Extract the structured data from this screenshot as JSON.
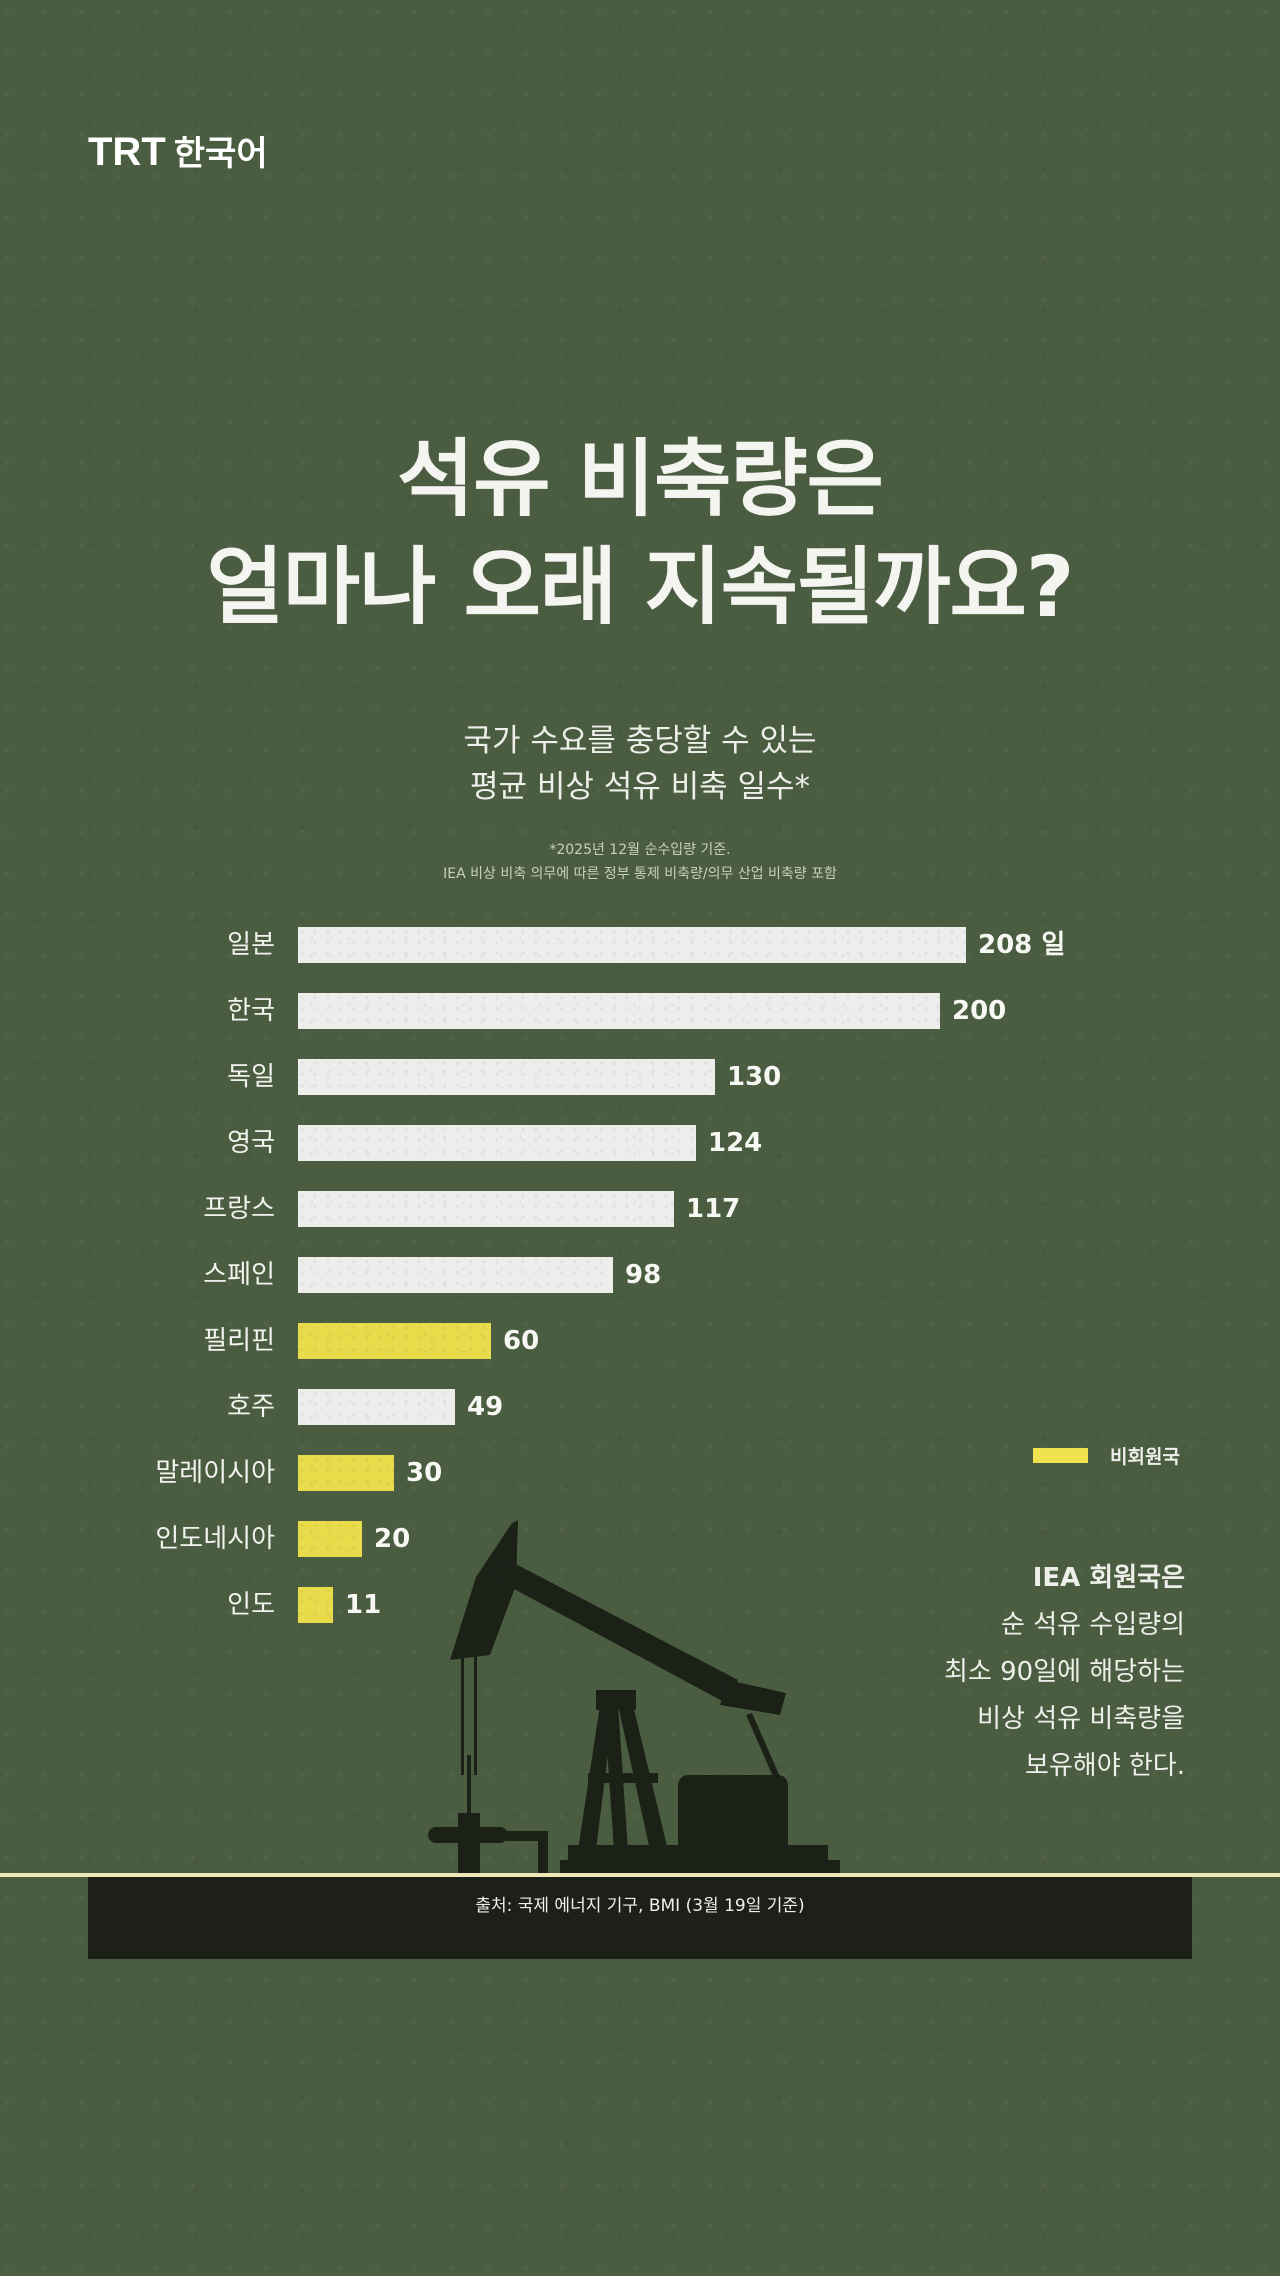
{
  "brand": {
    "logo_latin": "TRT",
    "logo_korean": "한국어"
  },
  "title": {
    "line1": "석유 비축량은",
    "line2": "얼마나 오래 지속될까요?"
  },
  "subtitle": {
    "line1": "국가 수요를 충당할 수 있는",
    "line2": "평균 비상 석유 비축 일수*"
  },
  "footnote": {
    "line1": "*2025년 12월 순수입량 기준.",
    "line2": "IEA 비상 비축 의무에 따른 정부 통제 비축량/의무 산업 비축량 포함"
  },
  "legend": {
    "nonmember_label": "비회원국",
    "nonmember_color": "#f1e34d"
  },
  "note": {
    "head": "IEA 회원국은",
    "line1": "순 석유 수입량의",
    "line2": "최소 90일에 해당하는",
    "line3": "비상 석유 비축량을",
    "line4": "보유해야 한다."
  },
  "source": {
    "text": "출처: 국제 에너지 기구, BMI (3월 19일 기준)"
  },
  "colors": {
    "background": "#4b5d41",
    "member_bar": "#ededeb",
    "nonmember_bar": "#e8dc4a",
    "source_box": "#1c2018",
    "ground_line": "#efe7b8"
  },
  "chart_data": {
    "type": "bar",
    "orientation": "horizontal",
    "title": "국가 수요를 충당할 수 있는 평균 비상 석유 비축 일수*",
    "unit": "일",
    "xlabel": "",
    "ylabel": "",
    "grid": false,
    "legend_position": "right",
    "categories": [
      "일본",
      "한국",
      "독일",
      "영국",
      "프랑스",
      "스페인",
      "필리핀",
      "호주",
      "말레이시아",
      "인도네시아",
      "인도"
    ],
    "values": [
      208,
      200,
      130,
      124,
      117,
      98,
      60,
      49,
      30,
      20,
      11
    ],
    "value_labels": [
      "208 일",
      "200",
      "130",
      "124",
      "117",
      "98",
      "60",
      "49",
      "30",
      "20",
      "11"
    ],
    "iea_member": [
      true,
      true,
      true,
      true,
      true,
      true,
      false,
      true,
      false,
      false,
      false
    ],
    "series": [
      {
        "name": "IEA 회원국",
        "color": "#ededeb"
      },
      {
        "name": "비회원국",
        "color": "#e8dc4a"
      }
    ],
    "annotation": "IEA 회원국은 순 석유 수입량의 최소 90일에 해당하는 비상 석유 비축량을 보유해야 한다."
  }
}
